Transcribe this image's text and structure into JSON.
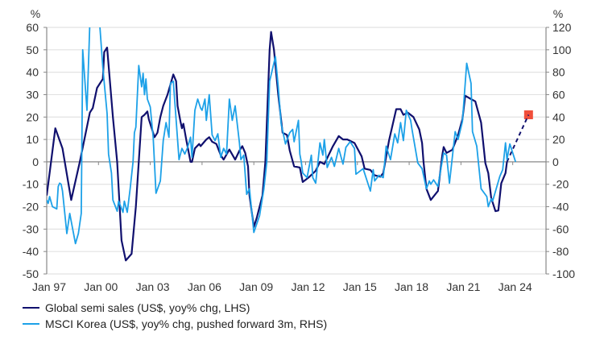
{
  "chart_data": {
    "type": "line",
    "title": "",
    "left_axis": {
      "unit_label": "%",
      "ylim": [
        -50,
        60
      ],
      "ticks": [
        "60",
        "50",
        "40",
        "30",
        "20",
        "10",
        "0",
        "-10",
        "-20",
        "-30",
        "-40",
        "-50"
      ]
    },
    "right_axis": {
      "unit_label": "%",
      "ylim": [
        -100,
        120
      ],
      "ticks": [
        "120",
        "100",
        "80",
        "60",
        "40",
        "20",
        "0",
        "-20",
        "-40",
        "-60",
        "-80",
        "-100"
      ]
    },
    "x_axis": {
      "range": [
        "1997-01",
        "2025-06"
      ],
      "tick_labels": [
        "Jan 97",
        "Jan 00",
        "Jan 03",
        "Jan 06",
        "Jan 09",
        "Jan 12",
        "Jan 15",
        "Jan 18",
        "Jan 21",
        "Jan 24"
      ],
      "tick_dates": [
        "1997-01",
        "2000-01",
        "2003-01",
        "2006-01",
        "2009-01",
        "2012-01",
        "2015-01",
        "2018-01",
        "2021-01",
        "2024-01"
      ]
    },
    "grid": true,
    "legend_position": "bottom-left",
    "series": [
      {
        "name": "Global semi sales (US$, yoy% chg, LHS)",
        "axis": "left",
        "color": "#10106e",
        "points": [
          [
            "1997-01",
            -15
          ],
          [
            "1997-03",
            -5
          ],
          [
            "1997-07",
            15
          ],
          [
            "1997-12",
            6
          ],
          [
            "1998-06",
            -17
          ],
          [
            "1998-12",
            0
          ],
          [
            "1999-07",
            22
          ],
          [
            "1999-09",
            24
          ],
          [
            "1999-12",
            33
          ],
          [
            "2000-04",
            37
          ],
          [
            "2000-05",
            49
          ],
          [
            "2000-07",
            51
          ],
          [
            "2000-11",
            20
          ],
          [
            "2001-02",
            0
          ],
          [
            "2001-05",
            -35
          ],
          [
            "2001-08",
            -44
          ],
          [
            "2001-12",
            -41
          ],
          [
            "2002-03",
            -20
          ],
          [
            "2002-05",
            0
          ],
          [
            "2002-07",
            20
          ],
          [
            "2002-09",
            21
          ],
          [
            "2002-11",
            22.5
          ],
          [
            "2002-12",
            19
          ],
          [
            "2003-04",
            11
          ],
          [
            "2003-06",
            13
          ],
          [
            "2003-08",
            20
          ],
          [
            "2003-10",
            25
          ],
          [
            "2004-01",
            30
          ],
          [
            "2004-05",
            39
          ],
          [
            "2004-07",
            36
          ],
          [
            "2004-08",
            25
          ],
          [
            "2004-10",
            18
          ],
          [
            "2004-11",
            15
          ],
          [
            "2004-12",
            17
          ],
          [
            "2005-02",
            10
          ],
          [
            "2005-05",
            0
          ],
          [
            "2005-06",
            0
          ],
          [
            "2005-08",
            6
          ],
          [
            "2005-11",
            8
          ],
          [
            "2005-12",
            7
          ],
          [
            "2006-04",
            10
          ],
          [
            "2006-06",
            11
          ],
          [
            "2006-08",
            9
          ],
          [
            "2006-11",
            8
          ],
          [
            "2007-02",
            3
          ],
          [
            "2007-04",
            1
          ],
          [
            "2007-08",
            5.5
          ],
          [
            "2007-12",
            1
          ],
          [
            "2008-03",
            5
          ],
          [
            "2008-05",
            7
          ],
          [
            "2008-07",
            4
          ],
          [
            "2008-09",
            -2
          ],
          [
            "2008-10",
            -15
          ],
          [
            "2009-01",
            -29
          ],
          [
            "2009-03",
            -25
          ],
          [
            "2009-07",
            -15
          ],
          [
            "2009-09",
            0
          ],
          [
            "2009-12",
            50
          ],
          [
            "2010-01",
            58
          ],
          [
            "2010-03",
            50
          ],
          [
            "2010-06",
            30
          ],
          [
            "2010-09",
            13
          ],
          [
            "2010-12",
            12
          ],
          [
            "2011-02",
            5
          ],
          [
            "2011-05",
            -2
          ],
          [
            "2011-09",
            -2.5
          ],
          [
            "2011-11",
            -9
          ],
          [
            "2012-03",
            -7
          ],
          [
            "2012-08",
            -4
          ],
          [
            "2012-11",
            0
          ],
          [
            "2013-02",
            -1
          ],
          [
            "2013-08",
            7
          ],
          [
            "2013-12",
            11.5
          ],
          [
            "2014-03",
            10
          ],
          [
            "2014-06",
            10
          ],
          [
            "2014-11",
            8.4
          ],
          [
            "2015-04",
            2.4
          ],
          [
            "2015-06",
            -3
          ],
          [
            "2015-10",
            -3.6
          ],
          [
            "2016-01",
            -6
          ],
          [
            "2016-05",
            -6.6
          ],
          [
            "2016-07",
            -5
          ],
          [
            "2016-11",
            9.6
          ],
          [
            "2017-04",
            23.5
          ],
          [
            "2017-07",
            23.5
          ],
          [
            "2017-09",
            21
          ],
          [
            "2017-12",
            22
          ],
          [
            "2018-04",
            20
          ],
          [
            "2018-08",
            14.5
          ],
          [
            "2018-10",
            8.4
          ],
          [
            "2018-11",
            0
          ],
          [
            "2019-01",
            -12
          ],
          [
            "2019-04",
            -17
          ],
          [
            "2019-09",
            -13
          ],
          [
            "2019-12",
            3
          ],
          [
            "2020-01",
            6.6
          ],
          [
            "2020-03",
            4
          ],
          [
            "2020-07",
            5.4
          ],
          [
            "2020-11",
            12
          ],
          [
            "2021-02",
            19
          ],
          [
            "2021-04",
            29.5
          ],
          [
            "2021-08",
            28
          ],
          [
            "2021-11",
            27
          ],
          [
            "2022-03",
            17.5
          ],
          [
            "2022-06",
            -0.6
          ],
          [
            "2022-08",
            -5
          ],
          [
            "2022-10",
            -16
          ],
          [
            "2023-01",
            -22
          ],
          [
            "2023-03",
            -21.7
          ],
          [
            "2023-05",
            -9.6
          ],
          [
            "2023-08",
            -5
          ],
          [
            "2023-09",
            0
          ]
        ],
        "projection": {
          "style": "dashed",
          "points": [
            [
              "2023-09",
              0
            ],
            [
              "2024-12",
              21
            ]
          ]
        },
        "forecast_marker": {
          "date": "2024-12",
          "value": 21,
          "color": "#f04e3a",
          "shape": "square"
        }
      },
      {
        "name": "MSCI Korea (US$, yoy% chg, pushed forward 3m, RHS)",
        "axis": "right",
        "color": "#1da1e8",
        "points": [
          [
            "1997-01",
            -34
          ],
          [
            "1997-02",
            -37
          ],
          [
            "1997-03",
            -31
          ],
          [
            "1997-05",
            -40
          ],
          [
            "1997-08",
            -42
          ],
          [
            "1997-09",
            -22
          ],
          [
            "1997-10",
            -19
          ],
          [
            "1997-11",
            -20
          ],
          [
            "1997-12",
            -26
          ],
          [
            "1998-03",
            -64
          ],
          [
            "1998-05",
            -46
          ],
          [
            "1998-09",
            -73
          ],
          [
            "1998-11",
            -64
          ],
          [
            "1999-01",
            -46
          ],
          [
            "1999-02",
            100
          ],
          [
            "1999-05",
            46
          ],
          [
            "1999-07",
            125
          ],
          [
            "1999-09",
            160
          ],
          [
            "2000-01",
            150
          ],
          [
            "2000-02",
            120
          ],
          [
            "2000-04",
            84
          ],
          [
            "2000-07",
            43
          ],
          [
            "2000-08",
            7
          ],
          [
            "2000-10",
            -10
          ],
          [
            "2000-11",
            -34
          ],
          [
            "2001-02",
            -44
          ],
          [
            "2001-03",
            -35
          ],
          [
            "2001-06",
            -45
          ],
          [
            "2001-07",
            -35
          ],
          [
            "2001-09",
            -45
          ],
          [
            "2001-11",
            -24
          ],
          [
            "2002-01",
            0
          ],
          [
            "2002-02",
            26
          ],
          [
            "2002-03",
            31
          ],
          [
            "2002-05",
            86
          ],
          [
            "2002-07",
            67
          ],
          [
            "2002-08",
            79
          ],
          [
            "2002-09",
            60
          ],
          [
            "2002-10",
            74
          ],
          [
            "2002-11",
            56
          ],
          [
            "2003-01",
            49
          ],
          [
            "2003-03",
            22
          ],
          [
            "2003-05",
            -28
          ],
          [
            "2003-08",
            -17
          ],
          [
            "2003-10",
            19
          ],
          [
            "2003-12",
            35
          ],
          [
            "2004-02",
            22
          ],
          [
            "2004-03",
            70
          ],
          [
            "2004-05",
            72
          ],
          [
            "2004-09",
            2
          ],
          [
            "2004-11",
            12
          ],
          [
            "2005-01",
            7
          ],
          [
            "2005-03",
            13
          ],
          [
            "2005-05",
            22
          ],
          [
            "2005-06",
            4
          ],
          [
            "2005-08",
            46
          ],
          [
            "2005-10",
            56
          ],
          [
            "2005-12",
            48
          ],
          [
            "2006-01",
            46
          ],
          [
            "2006-03",
            56
          ],
          [
            "2006-04",
            37
          ],
          [
            "2006-06",
            60
          ],
          [
            "2006-08",
            24
          ],
          [
            "2006-10",
            19
          ],
          [
            "2006-12",
            25
          ],
          [
            "2007-02",
            4
          ],
          [
            "2007-04",
            12
          ],
          [
            "2007-06",
            7
          ],
          [
            "2007-08",
            56
          ],
          [
            "2007-10",
            37
          ],
          [
            "2007-12",
            50
          ],
          [
            "2008-03",
            17
          ],
          [
            "2008-04",
            2
          ],
          [
            "2008-06",
            6
          ],
          [
            "2008-08",
            -29
          ],
          [
            "2008-10",
            -24
          ],
          [
            "2009-01",
            -63
          ],
          [
            "2009-05",
            -48
          ],
          [
            "2009-08",
            -24
          ],
          [
            "2009-10",
            0
          ],
          [
            "2009-12",
            72
          ],
          [
            "2010-04",
            94
          ],
          [
            "2010-06",
            67
          ],
          [
            "2010-08",
            34
          ],
          [
            "2010-11",
            16
          ],
          [
            "2011-02",
            26
          ],
          [
            "2011-04",
            29
          ],
          [
            "2011-05",
            18
          ],
          [
            "2011-08",
            37
          ],
          [
            "2011-09",
            7
          ],
          [
            "2011-10",
            0
          ],
          [
            "2011-11",
            -10
          ],
          [
            "2012-02",
            -14
          ],
          [
            "2012-05",
            6
          ],
          [
            "2012-06",
            -14
          ],
          [
            "2012-08",
            -19
          ],
          [
            "2012-11",
            17
          ],
          [
            "2013-01",
            6
          ],
          [
            "2013-02",
            20
          ],
          [
            "2013-04",
            -5
          ],
          [
            "2013-07",
            4
          ],
          [
            "2013-09",
            -4
          ],
          [
            "2013-12",
            12
          ],
          [
            "2014-03",
            -2
          ],
          [
            "2014-05",
            13
          ],
          [
            "2014-08",
            18
          ],
          [
            "2014-11",
            12
          ],
          [
            "2014-12",
            -11
          ],
          [
            "2015-05",
            -6
          ],
          [
            "2015-10",
            -26
          ],
          [
            "2015-12",
            -7
          ],
          [
            "2016-01",
            -17
          ],
          [
            "2016-04",
            -12
          ],
          [
            "2016-07",
            -14
          ],
          [
            "2016-09",
            14
          ],
          [
            "2016-12",
            2
          ],
          [
            "2017-03",
            25
          ],
          [
            "2017-05",
            17
          ],
          [
            "2017-07",
            35
          ],
          [
            "2017-09",
            19
          ],
          [
            "2017-11",
            46
          ],
          [
            "2018-02",
            37
          ],
          [
            "2018-03",
            29
          ],
          [
            "2018-07",
            -1
          ],
          [
            "2018-10",
            -6
          ],
          [
            "2019-01",
            -24
          ],
          [
            "2019-03",
            -17
          ],
          [
            "2019-04",
            -20
          ],
          [
            "2019-06",
            -16
          ],
          [
            "2019-09",
            -22
          ],
          [
            "2019-10",
            -14
          ],
          [
            "2020-01",
            8
          ],
          [
            "2020-03",
            6
          ],
          [
            "2020-05",
            -19
          ],
          [
            "2020-09",
            27
          ],
          [
            "2020-11",
            20
          ],
          [
            "2021-02",
            36
          ],
          [
            "2021-05",
            88
          ],
          [
            "2021-08",
            70
          ],
          [
            "2021-09",
            27
          ],
          [
            "2021-12",
            14
          ],
          [
            "2022-03",
            -24
          ],
          [
            "2022-07",
            -31
          ],
          [
            "2022-08",
            -40
          ],
          [
            "2022-10",
            -33
          ],
          [
            "2022-11",
            -35
          ],
          [
            "2023-04",
            -13
          ],
          [
            "2023-06",
            -7
          ],
          [
            "2023-08",
            17
          ],
          [
            "2023-09",
            2
          ],
          [
            "2023-11",
            16
          ],
          [
            "2024-03",
            0
          ]
        ]
      }
    ]
  }
}
